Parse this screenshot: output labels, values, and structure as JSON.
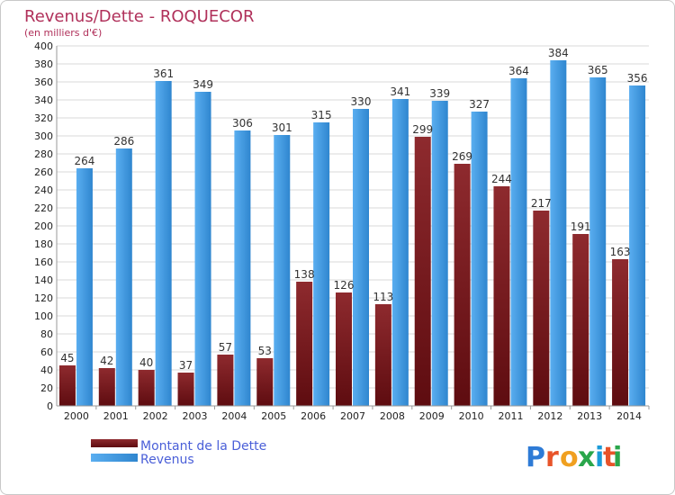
{
  "chart_data": {
    "type": "bar",
    "title": "Revenus/Dette - ROQUECOR",
    "subtitle": "(en milliers d'€)",
    "categories": [
      "2000",
      "2001",
      "2002",
      "2003",
      "2004",
      "2005",
      "2006",
      "2007",
      "2008",
      "2009",
      "2010",
      "2011",
      "2012",
      "2013",
      "2014"
    ],
    "series": [
      {
        "name": "Montant de la Dette",
        "color": "#7a1e22",
        "values": [
          45,
          42,
          40,
          37,
          57,
          53,
          138,
          126,
          113,
          299,
          269,
          244,
          217,
          191,
          163
        ]
      },
      {
        "name": "Revenus",
        "color": "#3f97dd",
        "values": [
          264,
          286,
          361,
          349,
          306,
          301,
          315,
          330,
          341,
          339,
          327,
          364,
          384,
          365,
          356
        ]
      }
    ],
    "ylim": [
      0,
      400
    ],
    "ytick_step": 20,
    "grid": true,
    "legend": "bottom-left"
  },
  "logo": {
    "text": "Proxiti",
    "letters": [
      "P",
      "r",
      "o",
      "x",
      "i",
      "t",
      "i"
    ],
    "colors": [
      "#2e7bd6",
      "#e8542a",
      "#f0a020",
      "#2aa64b",
      "#1a9bd8",
      "#e8542a",
      "#2aa64b"
    ]
  }
}
